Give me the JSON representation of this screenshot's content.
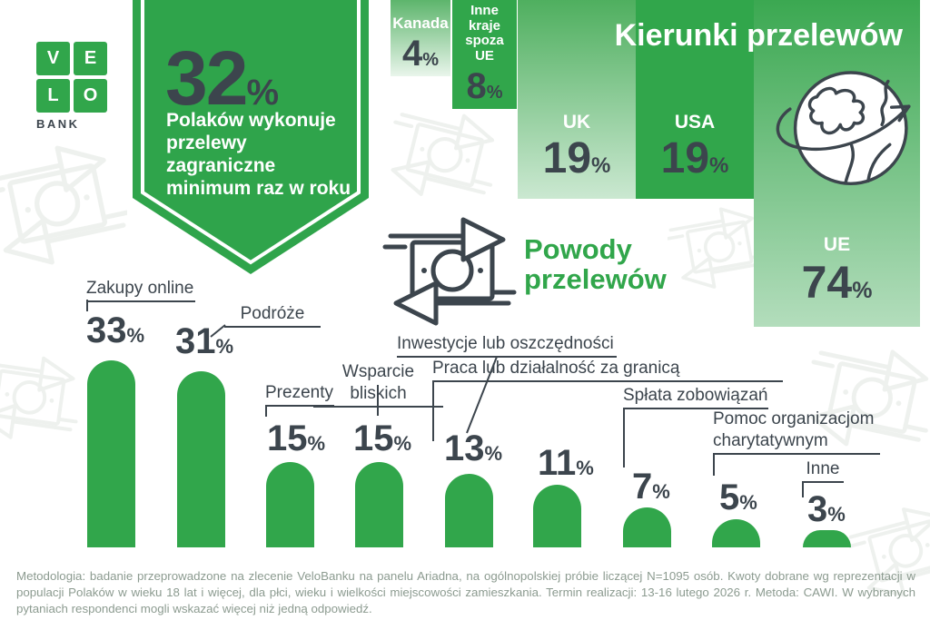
{
  "brand": {
    "letters": [
      "V",
      "E",
      "L",
      "O"
    ],
    "bank": "BANK"
  },
  "badge": {
    "value": "32",
    "unit": "%",
    "lines": [
      "Polaków wykonuje",
      "przelewy",
      "zagraniczne",
      "minimum raz w roku"
    ]
  },
  "directions": {
    "title": "Kierunki przelewów"
  },
  "reasons": {
    "title": "Powody przelewów"
  },
  "icons": {
    "globe": "globe-with-orbit-arrow",
    "money": "banknote-with-transfer-arrows"
  },
  "chart_data": [
    {
      "type": "bar",
      "title": "Kierunki przelewów",
      "orientation": "hanging-from-top",
      "categories": [
        "Kanada",
        "Inne kraje spoza UE",
        "UK",
        "USA",
        "UE"
      ],
      "values": [
        4,
        8,
        19,
        19,
        74
      ],
      "unit": "%",
      "legend": "none",
      "grid": false
    },
    {
      "type": "bar",
      "title": "Powody przelewów",
      "categories": [
        "Zakupy online",
        "Podróże",
        "Prezenty",
        "Wsparcie bliskich",
        "Inwestycje lub oszczędności",
        "Praca lub działalność za granicą",
        "Spłata zobowiązań",
        "Pomoc organizacjom charytatywnym",
        "Inne"
      ],
      "values": [
        33,
        31,
        15,
        15,
        13,
        11,
        7,
        5,
        3
      ],
      "unit": "%",
      "ylim": [
        0,
        33
      ],
      "legend": "none",
      "grid": false
    }
  ],
  "colors": {
    "brand_green": "#31A64B",
    "navy_text": "#3C454D",
    "gradient_light_end": "#E9F5EB",
    "methodology_text": "#8C9B90",
    "white": "#FFFFFF"
  },
  "methodology": "Metodologia: badanie przeprowadzone na zlecenie VeloBanku na panelu Ariadna, na ogólnopolskiej próbie liczącej N=1095 osób. Kwoty dobrane wg reprezentacji w populacji Polaków w wieku 18 lat i więcej, dla płci, wieku i wielkości miejscowości zamieszkania. Termin realizacji: 13-16 lutego 2026 r. Metoda: CAWI. W wybranych pytaniach respondenci mogli wskazać więcej niż jedną odpowiedź."
}
